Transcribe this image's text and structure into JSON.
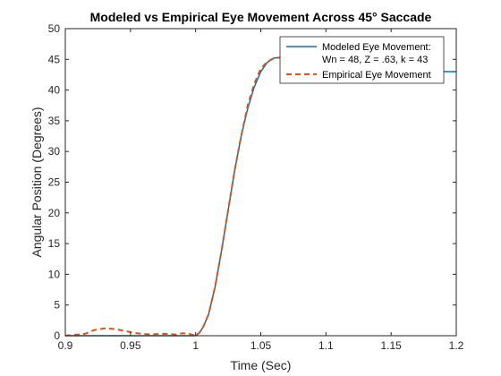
{
  "chart_data": {
    "type": "line",
    "title": "Modeled vs Empirical Eye Movement Across 45° Saccade",
    "xlabel": "Time (Sec)",
    "ylabel": "Angular Position (Degrees)",
    "xlim": [
      0.9,
      1.2
    ],
    "ylim": [
      0,
      50
    ],
    "xticks": [
      "0.9",
      "0.95",
      "1",
      "1.05",
      "1.1",
      "1.15",
      "1.2"
    ],
    "yticks": [
      "0",
      "5",
      "10",
      "15",
      "20",
      "25",
      "30",
      "35",
      "40",
      "45",
      "50"
    ],
    "grid": false,
    "legend_position": "top-right",
    "legend": [
      {
        "text_line1": "Modeled Eye Movement:",
        "text_line2": "Wn = 48, Z = .63, k = 43",
        "color": "#0072BD",
        "style": "solid"
      },
      {
        "text_line1": "Empirical Eye Movement",
        "color": "#D95319",
        "style": "dashed"
      }
    ],
    "series": [
      {
        "color": "#0072BD",
        "style": "solid",
        "x": [
          0.9,
          1.0,
          1.003,
          1.006,
          1.01,
          1.015,
          1.02,
          1.025,
          1.03,
          1.035,
          1.04,
          1.045,
          1.05,
          1.055,
          1.06,
          1.065,
          1.07,
          1.075,
          1.08,
          1.09,
          1.1,
          1.12,
          1.15,
          1.2
        ],
        "y": [
          0,
          0,
          0.5,
          1.5,
          3.5,
          8,
          14,
          20.5,
          27,
          32.5,
          37,
          40.5,
          43,
          44.5,
          45.2,
          45.3,
          45.0,
          44.5,
          44.0,
          43.5,
          43.2,
          43.0,
          43.0,
          43.0
        ]
      },
      {
        "color": "#D95319",
        "style": "dashed",
        "x": [
          0.9,
          0.915,
          0.922,
          0.93,
          0.938,
          0.945,
          0.955,
          0.965,
          0.975,
          0.985,
          0.99,
          0.995,
          1.0,
          1.003,
          1.006,
          1.01,
          1.015,
          1.02,
          1.025,
          1.03,
          1.035,
          1.04,
          1.045,
          1.05,
          1.055,
          1.06,
          1.065,
          1.07
        ],
        "y": [
          0,
          0.3,
          0.9,
          1.2,
          1.1,
          0.8,
          0.4,
          0.2,
          0.3,
          0.2,
          0.4,
          0.3,
          0.0,
          0.5,
          1.5,
          3.5,
          8,
          14,
          20.5,
          27,
          32.5,
          37.5,
          41,
          43.5,
          44.6,
          45.2,
          45.3,
          45.2
        ]
      }
    ]
  }
}
